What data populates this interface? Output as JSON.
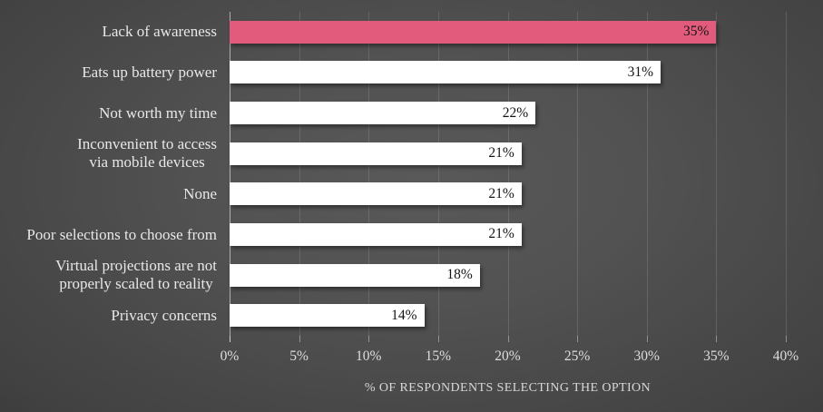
{
  "chart_data": {
    "type": "bar",
    "orientation": "horizontal",
    "categories": [
      "Lack of awareness",
      "Eats up battery power",
      "Not worth my time",
      "Inconvenient to access\nvia mobile devices",
      "None",
      "Poor selections to choose from",
      "Virtual projections are not\nproperly scaled to reality",
      "Privacy concerns"
    ],
    "values": [
      35,
      31,
      22,
      21,
      21,
      21,
      18,
      14
    ],
    "value_labels": [
      "35%",
      "31%",
      "22%",
      "21%",
      "21%",
      "21%",
      "18%",
      "14%"
    ],
    "xlabel": "% OF RESPONDENTS SELECTING THE OPTION",
    "x_ticks": [
      "0%",
      "5%",
      "10%",
      "15%",
      "20%",
      "25%",
      "30%",
      "35%",
      "40%"
    ],
    "x_tick_values": [
      0,
      5,
      10,
      15,
      20,
      25,
      30,
      35,
      40
    ],
    "xlim": [
      0,
      40
    ],
    "grid": "vertical-only",
    "legend": "none",
    "colors": {
      "highlight_bar": "#e25b7c",
      "default_bar": "#ffffff",
      "value_text": "#141414",
      "background_center": "#585858",
      "background_edge": "#242424"
    },
    "highlight_index": 0
  }
}
